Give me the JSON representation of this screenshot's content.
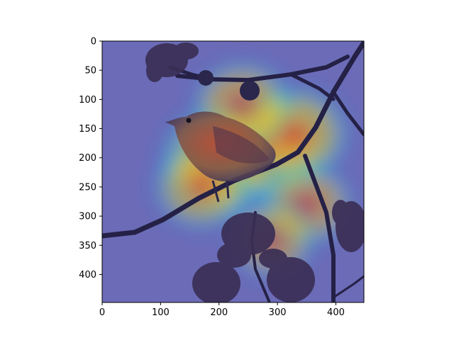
{
  "chart_data": {
    "type": "heatmap",
    "title": "",
    "xlabel": "",
    "ylabel": "",
    "xlim": [
      0,
      448
    ],
    "ylim": [
      448,
      0
    ],
    "x_ticks": [
      0,
      100,
      200,
      300,
      400
    ],
    "y_ticks": [
      0,
      50,
      100,
      150,
      200,
      250,
      300,
      350,
      400
    ],
    "colormap": "jet",
    "overlay": "Grad-CAM style attention heatmap over a photo of a small bird perched on a branch",
    "hotspots": [
      {
        "x": 205,
        "y": 205,
        "intensity": 1.0
      },
      {
        "x": 280,
        "y": 180,
        "intensity": 0.95
      },
      {
        "x": 330,
        "y": 160,
        "intensity": 0.75
      },
      {
        "x": 240,
        "y": 110,
        "intensity": 0.6
      },
      {
        "x": 170,
        "y": 250,
        "intensity": 0.55
      },
      {
        "x": 350,
        "y": 280,
        "intensity": 0.5
      },
      {
        "x": 290,
        "y": 340,
        "intensity": 0.4
      }
    ],
    "colors": {
      "background_photo": "#9c9cc7",
      "low": "#1e1e8c",
      "mid": "#2ec4e8",
      "high": "#f0e020",
      "peak": "#d9201e"
    }
  }
}
